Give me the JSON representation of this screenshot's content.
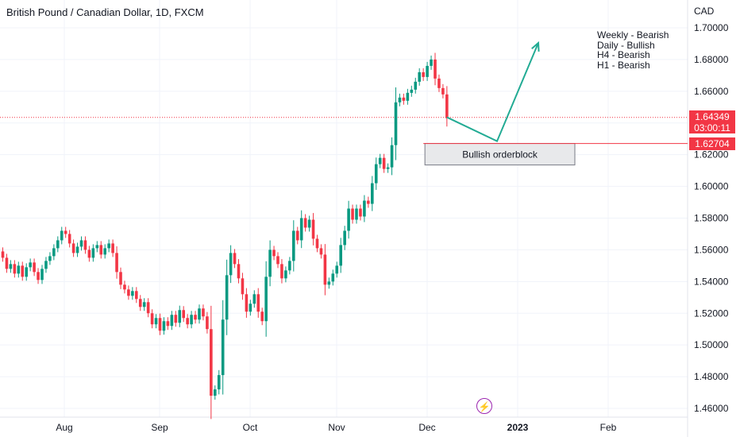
{
  "header": {
    "title": "British Pound / Canadian Dollar, 1D, FXCM",
    "currency": "CAD"
  },
  "notes": [
    "Weekly - Bearish",
    "Daily - Bullish",
    "H4 - Bearish",
    "H1 - Bearish"
  ],
  "price_labels": {
    "current_price": "1.64349",
    "countdown": "03:00:11",
    "level": "1.62704"
  },
  "icons": {
    "events": "lightning-icon"
  },
  "colors": {
    "up": "#089981",
    "down": "#f23645",
    "projection": "#22ab94",
    "level_line": "#f23645",
    "orderblock_fill": "#e8e9eb"
  },
  "chart_data": {
    "type": "candlestick",
    "title": "British Pound / Canadian Dollar, 1D, FXCM",
    "ylabel": "CAD",
    "ylim": [
      1.455,
      1.718
    ],
    "y_ticks": [
      "1.70000",
      "1.68000",
      "1.66000",
      "1.64000",
      "1.62000",
      "1.60000",
      "1.58000",
      "1.56000",
      "1.54000",
      "1.52000",
      "1.50000",
      "1.48000",
      "1.46000"
    ],
    "x_ticks": [
      "Aug",
      "Sep",
      "Oct",
      "Nov",
      "Dec",
      "2023",
      "Feb"
    ],
    "closes": [
      1.555,
      1.548,
      1.551,
      1.545,
      1.55,
      1.543,
      1.549,
      1.552,
      1.546,
      1.541,
      1.548,
      1.553,
      1.556,
      1.561,
      1.566,
      1.572,
      1.57,
      1.564,
      1.558,
      1.562,
      1.566,
      1.56,
      1.555,
      1.561,
      1.563,
      1.557,
      1.561,
      1.564,
      1.558,
      1.546,
      1.538,
      1.535,
      1.531,
      1.534,
      1.529,
      1.524,
      1.527,
      1.52,
      1.513,
      1.517,
      1.509,
      1.515,
      1.512,
      1.519,
      1.514,
      1.522,
      1.517,
      1.513,
      1.519,
      1.516,
      1.523,
      1.518,
      1.51,
      1.468,
      1.472,
      1.481,
      1.516,
      1.544,
      1.558,
      1.551,
      1.542,
      1.532,
      1.521,
      1.526,
      1.532,
      1.521,
      1.515,
      1.543,
      1.56,
      1.556,
      1.551,
      1.542,
      1.547,
      1.553,
      1.572,
      1.566,
      1.58,
      1.574,
      1.579,
      1.567,
      1.561,
      1.557,
      1.538,
      1.54,
      1.545,
      1.55,
      1.563,
      1.572,
      1.586,
      1.579,
      1.586,
      1.581,
      1.591,
      1.589,
      1.602,
      1.614,
      1.618,
      1.611,
      1.612,
      1.626,
      1.653,
      1.656,
      1.654,
      1.659,
      1.661,
      1.666,
      1.672,
      1.669,
      1.676,
      1.68,
      1.668,
      1.662,
      1.658,
      1.643
    ],
    "last_price": 1.64349,
    "price_level": 1.62704,
    "orderblock": {
      "label": "Bullish orderblock",
      "y_top": 1.6271,
      "y_bottom": 1.6135
    },
    "projection_path": [
      [
        1.6436,
        1.6285
      ],
      [
        1.6285,
        1.6905
      ]
    ],
    "annotations": [
      "Weekly - Bearish",
      "Daily - Bullish",
      "H4 - Bearish",
      "H1 - Bearish"
    ]
  }
}
